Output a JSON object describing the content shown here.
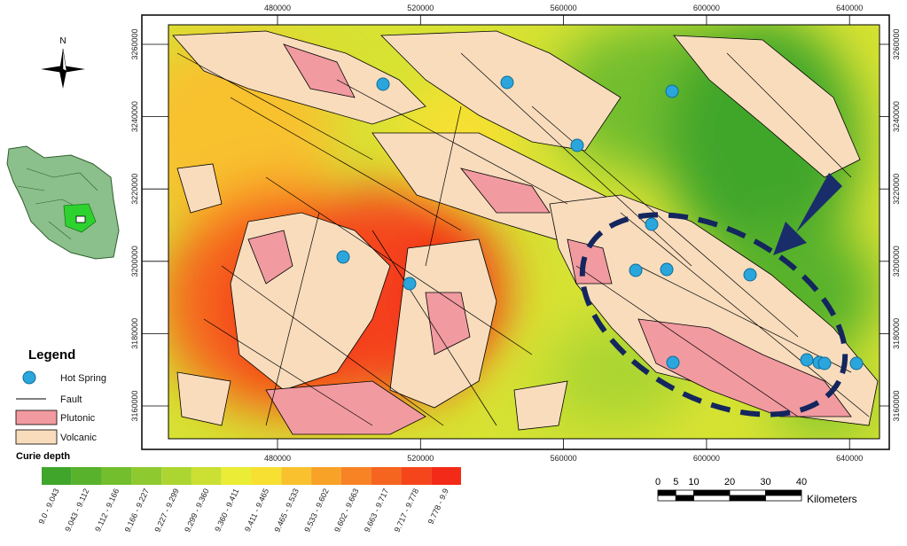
{
  "north_arrow": "N",
  "map": {
    "x_labels": [
      480000,
      520000,
      560000,
      600000,
      640000
    ],
    "y_labels": [
      3260000,
      3240000,
      3220000,
      3200000,
      3180000,
      3160000
    ]
  },
  "legend": {
    "title": "Legend",
    "items": [
      "Hot Spring",
      "Fault",
      "Plutonic",
      "Volcanic"
    ],
    "ramp_title": "Curie depth",
    "classes": [
      {
        "label": "9.0 - 9.043",
        "color": "#3fa62b"
      },
      {
        "label": "9.043 - 9.112",
        "color": "#58b22c"
      },
      {
        "label": "9.112 - 9.166",
        "color": "#72be2d"
      },
      {
        "label": "9.166 - 9.227",
        "color": "#8ec92f"
      },
      {
        "label": "9.227 - 9.299",
        "color": "#acd531"
      },
      {
        "label": "9.299 - 9.360",
        "color": "#cbe033"
      },
      {
        "label": "9.360 - 9.411",
        "color": "#ebec35"
      },
      {
        "label": "9.411 - 9.465",
        "color": "#f7e032"
      },
      {
        "label": "9.465 - 9.533",
        "color": "#f8c12d"
      },
      {
        "label": "9.533 - 9.602",
        "color": "#f8a228"
      },
      {
        "label": "9.602 - 9.663",
        "color": "#f78324"
      },
      {
        "label": "9.663 - 9.717",
        "color": "#f6651f"
      },
      {
        "label": "9.717 - 9.778",
        "color": "#f5461b"
      },
      {
        "label": "9.778 - 9.9",
        "color": "#f32a17"
      }
    ]
  },
  "scale_bar": {
    "ticks": [
      0,
      5,
      10,
      20,
      30,
      40
    ],
    "unit": "Kilometers"
  }
}
